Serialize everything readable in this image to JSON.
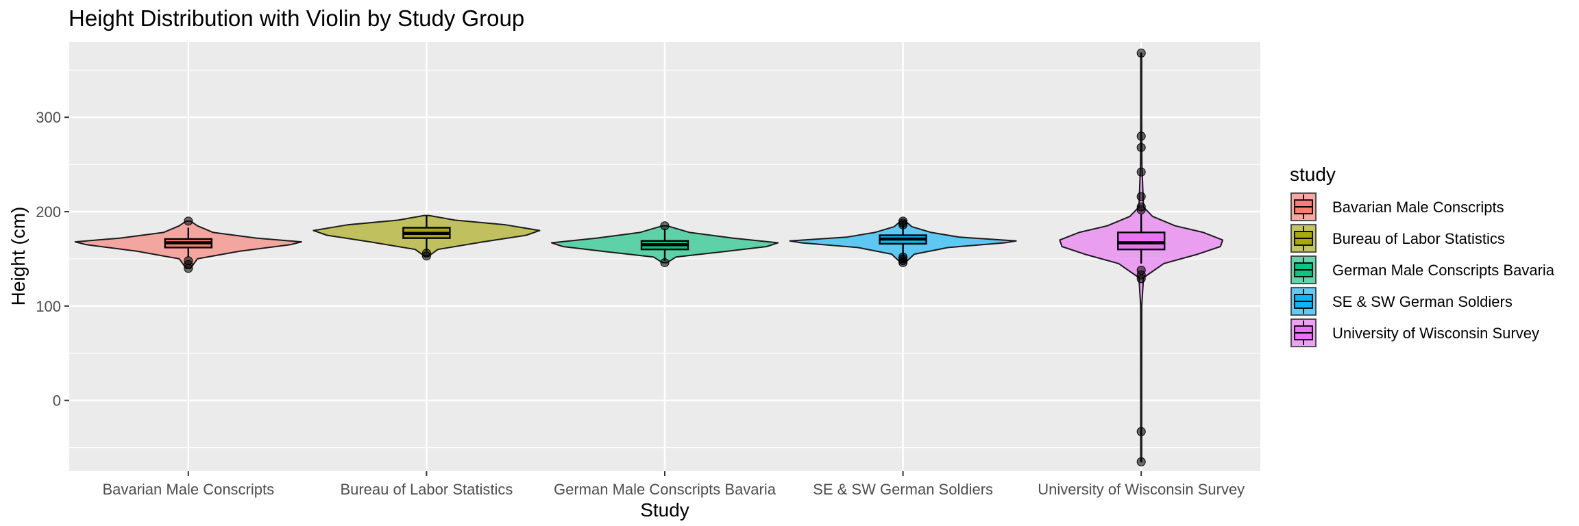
{
  "chart_data": {
    "type": "violin",
    "title": "Height Distribution with Violin by Study Group",
    "xlabel": "Study",
    "ylabel": "Height (cm)",
    "ylim": [
      -75,
      380
    ],
    "yticks": [
      0,
      100,
      200,
      300
    ],
    "grid": true,
    "legend": {
      "title": "study",
      "placement": "right",
      "entries": [
        "Bavarian Male Conscripts",
        "Bureau of Labor Statistics",
        "German Male Conscripts Bavaria",
        "SE & SW German Soldiers",
        "University of Wisconsin Survey"
      ]
    },
    "categories": [
      "Bavarian Male Conscripts",
      "Bureau of Labor Statistics",
      "German Male Conscripts Bavaria",
      "SE & SW German Soldiers",
      "University of Wisconsin Survey"
    ],
    "series": [
      {
        "category": "Bavarian Male Conscripts",
        "color": "#F8766D",
        "box": {
          "q1": 162,
          "median": 167,
          "q3": 171,
          "whisker_low": 152,
          "whisker_high": 183
        },
        "outliers": [
          190,
          148,
          144,
          140
        ],
        "violin": [
          [
            140,
            0.02
          ],
          [
            150,
            0.08
          ],
          [
            158,
            0.45
          ],
          [
            165,
            0.9
          ],
          [
            168,
            1.0
          ],
          [
            172,
            0.6
          ],
          [
            178,
            0.22
          ],
          [
            185,
            0.08
          ],
          [
            190,
            0.02
          ]
        ]
      },
      {
        "category": "Bureau of Labor Statistics",
        "color": "#A3A500",
        "box": {
          "q1": 172,
          "median": 177,
          "q3": 183,
          "whisker_low": 158,
          "whisker_high": 196
        },
        "outliers": [
          156,
          153
        ],
        "violin": [
          [
            153,
            0.02
          ],
          [
            160,
            0.1
          ],
          [
            168,
            0.5
          ],
          [
            175,
            0.88
          ],
          [
            180,
            1.0
          ],
          [
            186,
            0.7
          ],
          [
            191,
            0.25
          ],
          [
            196,
            0.02
          ]
        ]
      },
      {
        "category": "German Male Conscripts Bavaria",
        "color": "#00BF7D",
        "box": {
          "q1": 160,
          "median": 165,
          "q3": 169,
          "whisker_low": 148,
          "whisker_high": 182
        },
        "outliers": [
          185,
          146
        ],
        "violin": [
          [
            146,
            0.02
          ],
          [
            152,
            0.1
          ],
          [
            158,
            0.55
          ],
          [
            163,
            0.9
          ],
          [
            167,
            1.0
          ],
          [
            172,
            0.6
          ],
          [
            178,
            0.22
          ],
          [
            185,
            0.02
          ]
        ]
      },
      {
        "category": "SE & SW German Soldiers",
        "color": "#00B0F6",
        "box": {
          "q1": 166,
          "median": 171,
          "q3": 175,
          "whisker_low": 153,
          "whisker_high": 186
        },
        "outliers": [
          190,
          188,
          186,
          152,
          150,
          148,
          146
        ],
        "violin": [
          [
            146,
            0.02
          ],
          [
            155,
            0.1
          ],
          [
            162,
            0.4
          ],
          [
            167,
            0.9
          ],
          [
            169,
            1.0
          ],
          [
            173,
            0.5
          ],
          [
            178,
            0.25
          ],
          [
            184,
            0.08
          ],
          [
            190,
            0.02
          ]
        ]
      },
      {
        "category": "University of Wisconsin Survey",
        "color": "#E76BF3",
        "box": {
          "q1": 160,
          "median": 167,
          "q3": 178,
          "whisker_low": 145,
          "whisker_high": 198
        },
        "outliers": [
          368,
          280,
          268,
          242,
          216,
          205,
          202,
          138,
          133,
          129,
          -33,
          -65
        ],
        "violin": [
          [
            -65,
            0.004
          ],
          [
            0,
            0.004
          ],
          [
            100,
            0.005
          ],
          [
            130,
            0.02
          ],
          [
            145,
            0.2
          ],
          [
            155,
            0.5
          ],
          [
            163,
            0.7
          ],
          [
            170,
            0.72
          ],
          [
            178,
            0.55
          ],
          [
            185,
            0.3
          ],
          [
            195,
            0.1
          ],
          [
            205,
            0.02
          ],
          [
            250,
            0.006
          ],
          [
            300,
            0.004
          ],
          [
            368,
            0.004
          ]
        ]
      }
    ]
  }
}
